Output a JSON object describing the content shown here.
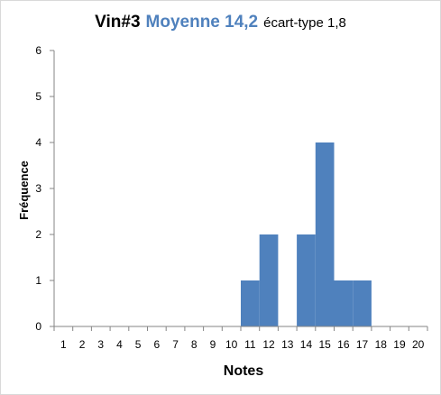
{
  "title": {
    "main": "Vin#3",
    "mean": "Moyenne 14,2",
    "sd": "écart-type 1,8"
  },
  "colors": {
    "bar": "#4f81bd",
    "mean_text": "#4f81bd",
    "axis": "#868686"
  },
  "chart_data": {
    "type": "bar",
    "title": "Vin#3 Moyenne 14,2 écart-type 1,8",
    "xlabel": "Notes",
    "ylabel": "Fréquence",
    "categories": [
      "1",
      "2",
      "3",
      "4",
      "5",
      "6",
      "7",
      "8",
      "9",
      "10",
      "11",
      "12",
      "13",
      "14",
      "15",
      "16",
      "17",
      "18",
      "19",
      "20"
    ],
    "values": [
      0,
      0,
      0,
      0,
      0,
      0,
      0,
      0,
      0,
      0,
      1,
      2,
      0,
      2,
      4,
      1,
      1,
      0,
      0,
      0
    ],
    "ylim": [
      0,
      6
    ],
    "yticks": [
      0,
      1,
      2,
      3,
      4,
      5,
      6
    ],
    "grid": false,
    "legend": "none"
  }
}
